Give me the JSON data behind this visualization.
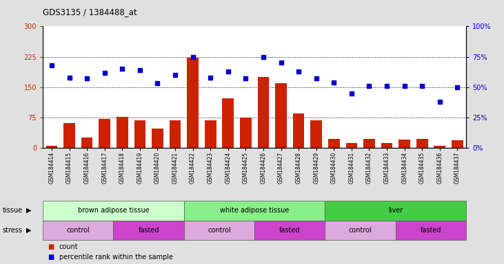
{
  "title": "GDS3135 / 1384488_at",
  "samples": [
    "GSM184414",
    "GSM184415",
    "GSM184416",
    "GSM184417",
    "GSM184418",
    "GSM184419",
    "GSM184420",
    "GSM184421",
    "GSM184422",
    "GSM184423",
    "GSM184424",
    "GSM184425",
    "GSM184426",
    "GSM184427",
    "GSM184428",
    "GSM184429",
    "GSM184430",
    "GSM184431",
    "GSM184432",
    "GSM184433",
    "GSM184434",
    "GSM184435",
    "GSM184436",
    "GSM184437"
  ],
  "counts": [
    5,
    62,
    25,
    72,
    76,
    68,
    48,
    68,
    222,
    68,
    122,
    75,
    175,
    160,
    85,
    68,
    22,
    12,
    22,
    12,
    20,
    22,
    5,
    18
  ],
  "percentiles": [
    68,
    58,
    57,
    62,
    65,
    64,
    53,
    60,
    75,
    58,
    63,
    57,
    75,
    70,
    63,
    57,
    54,
    45,
    51,
    51,
    51,
    51,
    38,
    50
  ],
  "ylim_left": [
    0,
    300
  ],
  "ylim_right": [
    0,
    100
  ],
  "yticks_left": [
    0,
    75,
    150,
    225,
    300
  ],
  "yticks_right": [
    0,
    25,
    50,
    75,
    100
  ],
  "hlines": [
    75,
    150,
    225
  ],
  "bar_color": "#cc2200",
  "dot_color": "#0000cc",
  "tissue_groups": [
    {
      "label": "brown adipose tissue",
      "start": 0,
      "end": 8,
      "color": "#ccffcc"
    },
    {
      "label": "white adipose tissue",
      "start": 8,
      "end": 16,
      "color": "#88ee88"
    },
    {
      "label": "liver",
      "start": 16,
      "end": 24,
      "color": "#44cc44"
    }
  ],
  "stress_groups": [
    {
      "label": "control",
      "start": 0,
      "end": 4,
      "color": "#ddaadd"
    },
    {
      "label": "fasted",
      "start": 4,
      "end": 8,
      "color": "#cc44cc"
    },
    {
      "label": "control",
      "start": 8,
      "end": 12,
      "color": "#ddaadd"
    },
    {
      "label": "fasted",
      "start": 12,
      "end": 16,
      "color": "#cc44cc"
    },
    {
      "label": "control",
      "start": 16,
      "end": 20,
      "color": "#ddaadd"
    },
    {
      "label": "fasted",
      "start": 20,
      "end": 24,
      "color": "#cc44cc"
    }
  ],
  "bg_color": "#e0e0e0",
  "plot_bg_color": "#ffffff"
}
